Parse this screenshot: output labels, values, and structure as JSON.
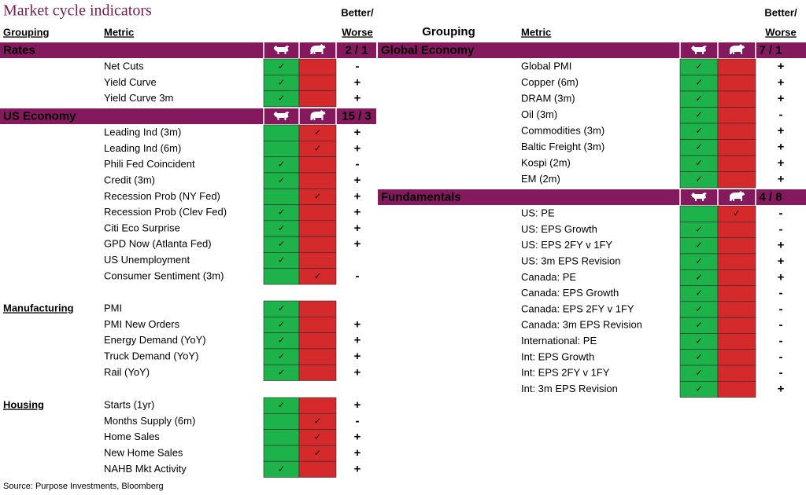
{
  "title": "Market cycle indicators",
  "left": {
    "headers": {
      "grouping": "Grouping",
      "metric": "Metric",
      "better_worse": [
        "Better/",
        "Worse"
      ]
    },
    "sections": [
      {
        "name": "Rates",
        "score": "2 / 1",
        "rows": [
          {
            "metric": "Net Cuts",
            "bull": "✓",
            "change": "-"
          },
          {
            "metric": "Yield Curve",
            "bull": "✓",
            "change": "+"
          },
          {
            "metric": "Yield Curve 3m",
            "bull": "✓",
            "change": "+"
          }
        ]
      },
      {
        "name": "US Economy",
        "score": "15 / 3",
        "rows": [
          {
            "metric": "Leading Ind (3m)",
            "bear": "✓",
            "change": "+"
          },
          {
            "metric": "Leading Ind (6m)",
            "bear": "✓",
            "change": "+"
          },
          {
            "metric": "Phili Fed Coincident",
            "bull": "✓",
            "change": "-"
          },
          {
            "metric": "Credit (3m)",
            "bull": "✓",
            "change": "+"
          },
          {
            "metric": "Recession Prob (NY Fed)",
            "bear": "✓",
            "change": "+"
          },
          {
            "metric": "Recession Prob (Clev Fed)",
            "bull": "✓",
            "change": "+"
          },
          {
            "metric": "Citi Eco Surprise",
            "bull": "✓",
            "change": "+"
          },
          {
            "metric": "GPD Now (Atlanta Fed)",
            "bull": "✓",
            "change": "+"
          },
          {
            "metric": "US Unemployment",
            "bull": "✓"
          },
          {
            "metric": "Consumer Sentiment (3m)",
            "bear": "✓",
            "change": "-"
          }
        ]
      },
      {
        "name": "Manufacturing",
        "rows": [
          {
            "metric": "PMI",
            "bull": "✓"
          },
          {
            "metric": "PMI New Orders",
            "bull": "✓",
            "change": "+"
          },
          {
            "metric": "Energy Demand (YoY)",
            "bull": "✓",
            "change": "+"
          },
          {
            "metric": "Truck Demand (YoY)",
            "bull": "✓",
            "change": "+"
          },
          {
            "metric": "Rail (YoY)",
            "bull": "✓",
            "change": "+"
          }
        ]
      },
      {
        "name": "Housing",
        "rows": [
          {
            "metric": "Starts (1yr)",
            "bull": "✓",
            "change": "+"
          },
          {
            "metric": "Months Supply (6m)",
            "bear": "✓",
            "change": "-"
          },
          {
            "metric": "Home Sales",
            "bear": "✓",
            "change": "+"
          },
          {
            "metric": "New Home Sales",
            "bear": "✓",
            "change": "+"
          },
          {
            "metric": "NAHB Mkt Activity",
            "bull": "✓",
            "change": "+"
          }
        ]
      }
    ]
  },
  "right": {
    "headers": {
      "grouping": "Grouping",
      "metric": "Metric",
      "better_worse": [
        "Better/",
        "Worse"
      ]
    },
    "sections": [
      {
        "name": "Global Economy",
        "score": "7 / 1",
        "rows": [
          {
            "metric": "Global PMI",
            "bull": "✓",
            "change": "+"
          },
          {
            "metric": "Copper (6m)",
            "bull": "✓",
            "change": "+"
          },
          {
            "metric": "DRAM (3m)",
            "bull": "✓",
            "change": "+"
          },
          {
            "metric": "Oil (3m)",
            "bull": "✓",
            "change": "-"
          },
          {
            "metric": "Commodities (3m)",
            "bull": "✓",
            "change": "+"
          },
          {
            "metric": "Baltic Freight (3m)",
            "bull": "✓",
            "change": "+"
          },
          {
            "metric": "Kospi (2m)",
            "bull": "✓",
            "change": "+"
          },
          {
            "metric": "EM (2m)",
            "bull": "✓",
            "change": "+"
          }
        ]
      },
      {
        "name": "Fundamentals",
        "score": "4 / 8",
        "rows": [
          {
            "metric": "US: PE",
            "bear": "✓",
            "change": "-"
          },
          {
            "metric": "US: EPS Growth",
            "bull": "✓",
            "change": "-"
          },
          {
            "metric": "US: EPS 2FY v 1FY",
            "bull": "✓",
            "change": "+"
          },
          {
            "metric": "US: 3m EPS Revision",
            "bull": "✓",
            "change": "+"
          },
          {
            "metric": "Canada: PE",
            "bull": "✓",
            "change": "+"
          },
          {
            "metric": "Canada: EPS Growth",
            "bull": "✓",
            "change": "-"
          },
          {
            "metric": "Canada: EPS 2FY v 1FY",
            "bull": "✓",
            "change": "-"
          },
          {
            "metric": "Canada: 3m EPS Revision",
            "bull": "✓",
            "change": "-"
          },
          {
            "metric": "International: PE",
            "bull": "✓",
            "change": "-"
          },
          {
            "metric": "Int: EPS Growth",
            "bull": "✓",
            "change": "-"
          },
          {
            "metric": "Int: EPS 2FY v 1FY",
            "bull": "✓",
            "change": "-"
          },
          {
            "metric": "Int: 3m EPS Revision",
            "bull": "✓",
            "change": "+"
          }
        ]
      }
    ]
  },
  "source": "Source: Purpose Investments, Bloomberg"
}
